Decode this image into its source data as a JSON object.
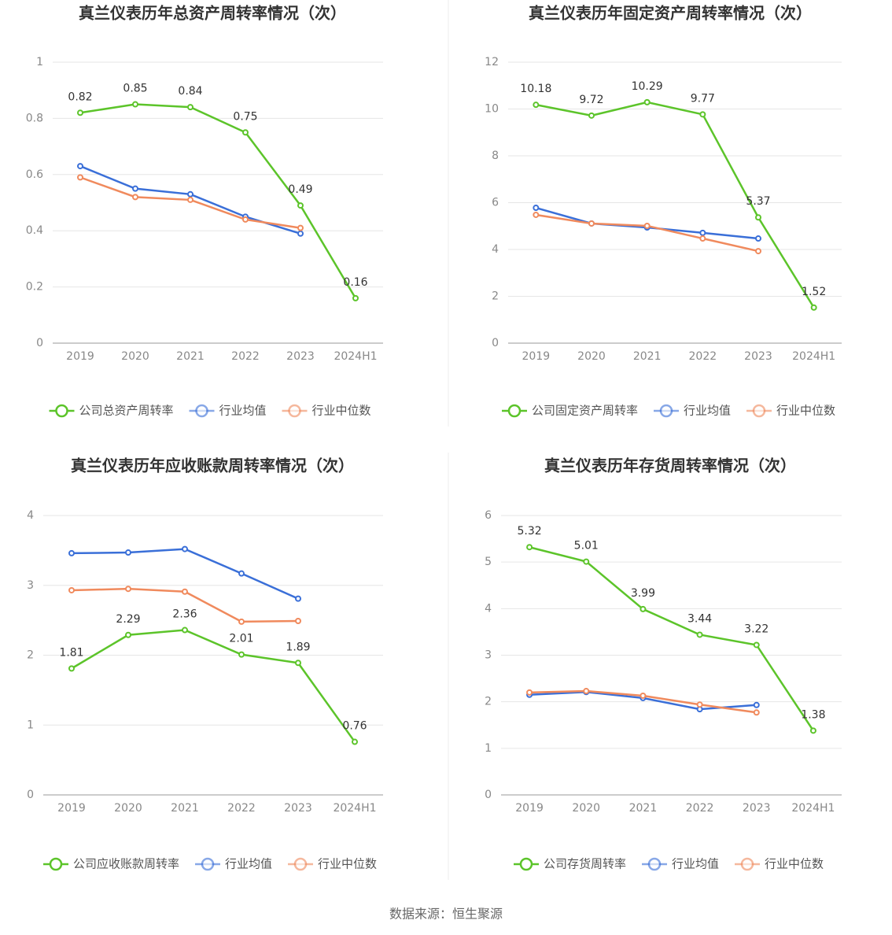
{
  "chart_data": [
    {
      "type": "line",
      "title": "真兰仪表历年总资产周转率情况（次）",
      "categories": [
        "2019",
        "2020",
        "2021",
        "2022",
        "2023",
        "2024H1"
      ],
      "series": [
        {
          "name": "公司总资产周转率",
          "color": "#5cc42a",
          "values": [
            0.82,
            0.85,
            0.84,
            0.75,
            0.49,
            0.16
          ]
        },
        {
          "name": "行业均值",
          "color": "#3a6fd8",
          "values": [
            0.63,
            0.55,
            0.53,
            0.45,
            0.39,
            null
          ]
        },
        {
          "name": "行业中位数",
          "color": "#f08a5d",
          "values": [
            0.59,
            0.52,
            0.51,
            0.44,
            0.41,
            null
          ]
        }
      ],
      "ylim": [
        0,
        1
      ],
      "yticks": [
        0,
        0.2,
        0.4,
        0.6,
        0.8,
        1
      ],
      "grid": true
    },
    {
      "type": "line",
      "title": "真兰仪表历年固定资产周转率情况（次）",
      "categories": [
        "2019",
        "2020",
        "2021",
        "2022",
        "2023",
        "2024H1"
      ],
      "series": [
        {
          "name": "公司固定资产周转率",
          "color": "#5cc42a",
          "values": [
            10.18,
            9.72,
            10.29,
            9.77,
            5.37,
            1.52
          ]
        },
        {
          "name": "行业均值",
          "color": "#3a6fd8",
          "values": [
            5.78,
            5.11,
            4.94,
            4.71,
            4.47,
            null
          ]
        },
        {
          "name": "行业中位数",
          "color": "#f08a5d",
          "values": [
            5.48,
            5.11,
            5.01,
            4.47,
            3.93,
            null
          ]
        }
      ],
      "ylim": [
        0,
        12
      ],
      "yticks": [
        0,
        2,
        4,
        6,
        8,
        10,
        12
      ],
      "grid": true
    },
    {
      "type": "line",
      "title": "真兰仪表历年应收账款周转率情况（次）",
      "categories": [
        "2019",
        "2020",
        "2021",
        "2022",
        "2023",
        "2024H1"
      ],
      "series": [
        {
          "name": "公司应收账款周转率",
          "color": "#5cc42a",
          "values": [
            1.81,
            2.29,
            2.36,
            2.01,
            1.89,
            0.76
          ]
        },
        {
          "name": "行业均值",
          "color": "#3a6fd8",
          "values": [
            3.46,
            3.47,
            3.52,
            3.17,
            2.81,
            null
          ]
        },
        {
          "name": "行业中位数",
          "color": "#f08a5d",
          "values": [
            2.93,
            2.95,
            2.91,
            2.48,
            2.49,
            null
          ]
        }
      ],
      "ylim": [
        0,
        4
      ],
      "yticks": [
        0,
        1,
        2,
        3,
        4
      ],
      "grid": true
    },
    {
      "type": "line",
      "title": "真兰仪表历年存货周转率情况（次）",
      "categories": [
        "2019",
        "2020",
        "2021",
        "2022",
        "2023",
        "2024H1"
      ],
      "series": [
        {
          "name": "公司存货周转率",
          "color": "#5cc42a",
          "values": [
            5.32,
            5.01,
            3.99,
            3.44,
            3.22,
            1.38
          ]
        },
        {
          "name": "行业均值",
          "color": "#3a6fd8",
          "values": [
            2.15,
            2.21,
            2.08,
            1.84,
            1.93,
            null
          ]
        },
        {
          "name": "行业中位数",
          "color": "#f08a5d",
          "values": [
            2.2,
            2.23,
            2.13,
            1.94,
            1.77,
            null
          ]
        }
      ],
      "ylim": [
        0,
        6
      ],
      "yticks": [
        0,
        1,
        2,
        3,
        4,
        5,
        6
      ],
      "grid": true
    }
  ],
  "footer": "数据来源：恒生聚源"
}
